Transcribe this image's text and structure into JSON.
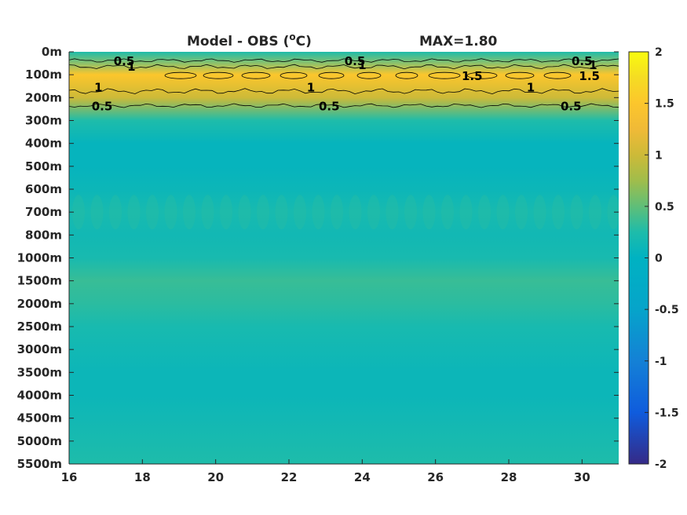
{
  "chart_data": {
    "type": "heatmap",
    "title": "Model - OBS (",
    "title_unit_sup": "o",
    "title_unit_end": "C)",
    "max_label": "MAX=1.80",
    "x": {
      "range": [
        16,
        31
      ],
      "ticks": [
        16,
        18,
        20,
        22,
        24,
        26,
        28,
        30
      ],
      "tick_labels": [
        "16",
        "18",
        "20",
        "22",
        "24",
        "26",
        "28",
        "30"
      ]
    },
    "y": {
      "tick_labels": [
        "0m",
        "100m",
        "200m",
        "300m",
        "400m",
        "500m",
        "600m",
        "700m",
        "800m",
        "1000m",
        "1500m",
        "2000m",
        "2500m",
        "3000m",
        "3500m",
        "4000m",
        "4500m",
        "5000m",
        "5500m"
      ]
    },
    "colorbar": {
      "range": [
        -2,
        2
      ],
      "ticks": [
        2,
        1.5,
        1,
        0.5,
        0,
        -0.5,
        -1,
        -1.5,
        -2
      ],
      "tick_labels": [
        "2",
        "1.5",
        "1",
        "0.5",
        "0",
        "-0.5",
        "-1",
        "-1.5",
        "-2"
      ],
      "colormap": "parula"
    },
    "depth_profile": [
      {
        "level": "0m",
        "value": 0.25
      },
      {
        "level": "100m",
        "value": 1.5
      },
      {
        "level": "200m",
        "value": 1.0
      },
      {
        "level": "300m",
        "value": 0.25
      },
      {
        "level": "400m",
        "value": 0.05
      },
      {
        "level": "500m",
        "value": 0.05
      },
      {
        "level": "600m",
        "value": 0.1
      },
      {
        "level": "700m",
        "value": 0.2
      },
      {
        "level": "800m",
        "value": 0.15
      },
      {
        "level": "1000m",
        "value": 0.2
      },
      {
        "level": "1500m",
        "value": 0.35
      },
      {
        "level": "2000m",
        "value": 0.3
      },
      {
        "level": "2500m",
        "value": 0.2
      },
      {
        "level": "3000m",
        "value": 0.15
      },
      {
        "level": "3500m",
        "value": 0.1
      },
      {
        "level": "4000m",
        "value": 0.1
      },
      {
        "level": "4500m",
        "value": 0.15
      },
      {
        "level": "5000m",
        "value": 0.2
      },
      {
        "level": "5500m",
        "value": 0.25
      }
    ],
    "contour_labels": [
      {
        "text": "0.5",
        "x": 17.5,
        "level": "0m"
      },
      {
        "text": "1",
        "x": 17.7,
        "level": "100m"
      },
      {
        "text": "1",
        "x": 16.8,
        "level": "200m"
      },
      {
        "text": "0.5",
        "x": 16.9,
        "level": "200m"
      },
      {
        "text": "0.5",
        "x": 23.8,
        "level": "0m"
      },
      {
        "text": "1",
        "x": 24.0,
        "level": "0m"
      },
      {
        "text": "1.5",
        "x": 27.0,
        "level": "100m"
      },
      {
        "text": "1",
        "x": 22.6,
        "level": "200m"
      },
      {
        "text": "0.5",
        "x": 23.1,
        "level": "200m"
      },
      {
        "text": "1",
        "x": 28.6,
        "level": "200m"
      },
      {
        "text": "0.5",
        "x": 29.7,
        "level": "200m"
      },
      {
        "text": "0.5",
        "x": 30.0,
        "level": "0m"
      },
      {
        "text": "1",
        "x": 30.3,
        "level": "0m"
      },
      {
        "text": "1.5",
        "x": 30.2,
        "level": "100m"
      }
    ]
  }
}
